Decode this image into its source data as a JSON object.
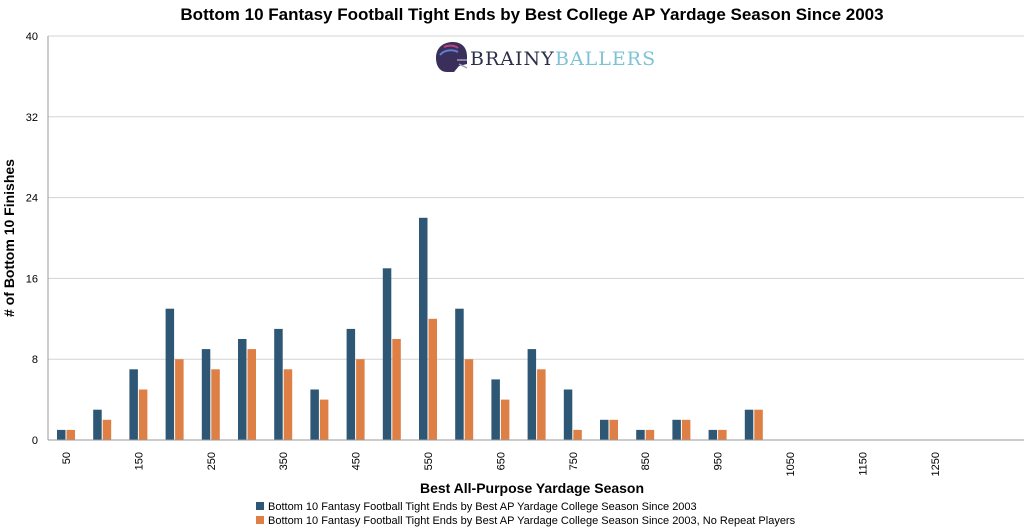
{
  "chart_data": {
    "type": "bar",
    "title": "Bottom 10 Fantasy Football Tight Ends by Best College AP Yardage Season Since 2003",
    "xlabel": "Best All-Purpose Yardage Season",
    "ylabel": "# of Bottom 10 Finishes",
    "ylim": [
      0,
      40
    ],
    "yticks": [
      "0",
      "8",
      "16",
      "24",
      "32",
      "40"
    ],
    "grid": "horizontal",
    "legend_position": "bottom",
    "categories": [
      "50",
      "100",
      "150",
      "200",
      "250",
      "300",
      "350",
      "400",
      "450",
      "500",
      "550",
      "600",
      "650",
      "700",
      "750",
      "800",
      "850",
      "900",
      "950",
      "1000",
      "1050",
      "1100",
      "1150",
      "1200",
      "1250",
      "1300"
    ],
    "tick_labels": [
      "50",
      "",
      "150",
      "",
      "250",
      "",
      "350",
      "",
      "450",
      "",
      "550",
      "",
      "650",
      "",
      "750",
      "",
      "850",
      "",
      "950",
      "",
      "1050",
      "",
      "1150",
      "",
      "1250",
      ""
    ],
    "series": [
      {
        "name": "Bottom 10 Fantasy Football Tight Ends by Best AP Yardage College Season Since 2003",
        "color": "#2e5776",
        "values": [
          1,
          3,
          7,
          13,
          9,
          10,
          11,
          5,
          11,
          17,
          22,
          13,
          6,
          9,
          5,
          2,
          1,
          2,
          1,
          3,
          0,
          0,
          0,
          0,
          0,
          0
        ]
      },
      {
        "name": "Bottom 10 Fantasy Football Tight Ends by Best AP Yardage College Season Since 2003, No Repeat Players",
        "color": "#de7f45",
        "values": [
          1,
          2,
          5,
          8,
          7,
          9,
          7,
          4,
          8,
          10,
          12,
          8,
          4,
          7,
          1,
          2,
          1,
          2,
          1,
          3,
          0,
          0,
          0,
          0,
          0,
          0
        ]
      }
    ]
  },
  "watermark": {
    "part1": "BRAINY",
    "part2": "BALLERS"
  }
}
